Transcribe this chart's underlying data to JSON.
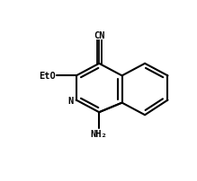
{
  "bg_color": "#ffffff",
  "bond_color": "#000000",
  "text_color": "#000000",
  "lw": 1.5,
  "fs": 7.5,
  "xlim": [
    0.0,
    1.0
  ],
  "ylim": [
    0.0,
    1.0
  ]
}
